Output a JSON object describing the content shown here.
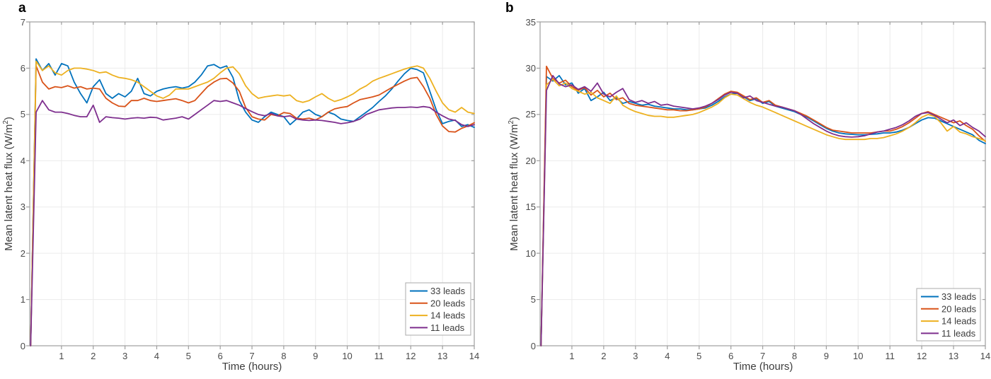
{
  "figure": {
    "panels": [
      {
        "label": "a",
        "xlabel": "Time (hours)",
        "ylabel_main": "Mean latent heat flux (W/m",
        "ylabel_sup": "2",
        "ylabel_end": ")"
      },
      {
        "label": "b",
        "xlabel": "Time (hours)",
        "ylabel_main": "Mean latent heat flux (W/m",
        "ylabel_sup": "2",
        "ylabel_end": ")"
      }
    ]
  },
  "chart_data": [
    {
      "type": "line",
      "panel": "a",
      "title": "",
      "xlabel": "Time (hours)",
      "ylabel": "Mean latent heat flux (W/m^2)",
      "xlim": [
        0,
        14
      ],
      "ylim": [
        0,
        7
      ],
      "xticks": [
        1,
        2,
        3,
        4,
        5,
        6,
        7,
        8,
        9,
        10,
        11,
        12,
        13,
        14
      ],
      "yticks": [
        0,
        1,
        2,
        3,
        4,
        5,
        6,
        7
      ],
      "grid": true,
      "legend_position": "lower right inset",
      "x": [
        0.03,
        0.2,
        0.4,
        0.6,
        0.8,
        1,
        1.2,
        1.4,
        1.6,
        1.8,
        2,
        2.2,
        2.4,
        2.6,
        2.8,
        3,
        3.2,
        3.4,
        3.6,
        3.8,
        4,
        4.2,
        4.4,
        4.6,
        4.8,
        5,
        5.2,
        5.4,
        5.6,
        5.8,
        6,
        6.2,
        6.4,
        6.6,
        6.8,
        7,
        7.2,
        7.4,
        7.6,
        7.8,
        8,
        8.2,
        8.4,
        8.6,
        8.8,
        9,
        9.2,
        9.4,
        9.6,
        9.8,
        10,
        10.2,
        10.4,
        10.6,
        10.8,
        11,
        11.2,
        11.4,
        11.6,
        11.8,
        12,
        12.2,
        12.4,
        12.6,
        12.8,
        13,
        13.2,
        13.4,
        13.6,
        13.8,
        14
      ],
      "series": [
        {
          "name": "33 leads",
          "color": "#0072BD",
          "values": [
            0,
            6.2,
            5.95,
            6.1,
            5.85,
            6.1,
            6.05,
            5.7,
            5.45,
            5.25,
            5.6,
            5.75,
            5.45,
            5.35,
            5.45,
            5.38,
            5.5,
            5.78,
            5.45,
            5.4,
            5.5,
            5.55,
            5.58,
            5.6,
            5.57,
            5.6,
            5.7,
            5.85,
            6.05,
            6.08,
            6.0,
            6.05,
            5.8,
            5.3,
            5.05,
            4.88,
            4.83,
            4.95,
            5.05,
            5.0,
            4.95,
            4.78,
            4.9,
            5.05,
            5.1,
            5.0,
            4.95,
            5.05,
            5.0,
            4.9,
            4.87,
            4.85,
            4.95,
            5.05,
            5.15,
            5.28,
            5.4,
            5.55,
            5.72,
            5.88,
            6.0,
            5.97,
            5.9,
            5.5,
            5.1,
            4.8,
            4.85,
            4.88,
            4.74,
            4.78,
            4.72
          ]
        },
        {
          "name": "20 leads",
          "color": "#D95319",
          "values": [
            0,
            6.05,
            5.7,
            5.55,
            5.6,
            5.58,
            5.62,
            5.57,
            5.6,
            5.55,
            5.57,
            5.55,
            5.35,
            5.25,
            5.18,
            5.17,
            5.3,
            5.3,
            5.35,
            5.3,
            5.28,
            5.3,
            5.32,
            5.34,
            5.3,
            5.25,
            5.3,
            5.45,
            5.6,
            5.7,
            5.77,
            5.78,
            5.68,
            5.5,
            5.15,
            4.95,
            4.9,
            4.88,
            5.0,
            4.97,
            5.04,
            5.02,
            4.92,
            4.9,
            4.92,
            4.88,
            4.95,
            5.05,
            5.12,
            5.15,
            5.17,
            5.25,
            5.32,
            5.35,
            5.38,
            5.42,
            5.5,
            5.58,
            5.65,
            5.72,
            5.78,
            5.8,
            5.6,
            5.35,
            5.0,
            4.75,
            4.63,
            4.62,
            4.7,
            4.75,
            4.82
          ]
        },
        {
          "name": "14 leads",
          "color": "#EDB120",
          "values": [
            0,
            6.15,
            5.95,
            6.05,
            5.9,
            5.85,
            5.95,
            6.0,
            6.0,
            5.98,
            5.95,
            5.9,
            5.92,
            5.85,
            5.8,
            5.78,
            5.75,
            5.7,
            5.6,
            5.5,
            5.4,
            5.35,
            5.42,
            5.55,
            5.55,
            5.55,
            5.6,
            5.65,
            5.7,
            5.78,
            5.9,
            6.0,
            6.03,
            5.88,
            5.62,
            5.45,
            5.35,
            5.38,
            5.4,
            5.42,
            5.4,
            5.42,
            5.3,
            5.26,
            5.3,
            5.38,
            5.45,
            5.35,
            5.28,
            5.32,
            5.38,
            5.45,
            5.55,
            5.62,
            5.72,
            5.78,
            5.83,
            5.88,
            5.93,
            5.98,
            6.02,
            6.05,
            6.0,
            5.78,
            5.5,
            5.25,
            5.1,
            5.05,
            5.15,
            5.05,
            5.02
          ]
        },
        {
          "name": "11 leads",
          "color": "#7E2F8E",
          "values": [
            0,
            5.05,
            5.3,
            5.1,
            5.05,
            5.05,
            5.02,
            4.98,
            4.95,
            4.95,
            5.2,
            4.83,
            4.95,
            4.93,
            4.92,
            4.9,
            4.92,
            4.93,
            4.92,
            4.94,
            4.93,
            4.88,
            4.9,
            4.92,
            4.95,
            4.9,
            5.0,
            5.1,
            5.2,
            5.3,
            5.28,
            5.3,
            5.25,
            5.2,
            5.13,
            5.06,
            5.0,
            4.97,
            5.02,
            4.97,
            4.95,
            4.97,
            4.9,
            4.88,
            4.87,
            4.88,
            4.87,
            4.85,
            4.83,
            4.8,
            4.82,
            4.85,
            4.9,
            5.0,
            5.05,
            5.1,
            5.12,
            5.14,
            5.15,
            5.15,
            5.16,
            5.15,
            5.17,
            5.15,
            5.05,
            4.97,
            4.9,
            4.87,
            4.78,
            4.74,
            4.78
          ]
        }
      ]
    },
    {
      "type": "line",
      "panel": "b",
      "title": "",
      "xlabel": "Time (hours)",
      "ylabel": "Mean latent heat flux (W/m^2)",
      "xlim": [
        0,
        14
      ],
      "ylim": [
        0,
        35
      ],
      "xticks": [
        1,
        2,
        3,
        4,
        5,
        6,
        7,
        8,
        9,
        10,
        11,
        12,
        13,
        14
      ],
      "yticks": [
        0,
        5,
        10,
        15,
        20,
        25,
        30,
        35
      ],
      "grid": true,
      "legend_position": "lower right inset",
      "x": [
        0.03,
        0.2,
        0.4,
        0.6,
        0.8,
        1,
        1.2,
        1.4,
        1.6,
        1.8,
        2,
        2.2,
        2.4,
        2.6,
        2.8,
        3,
        3.2,
        3.4,
        3.6,
        3.8,
        4,
        4.2,
        4.4,
        4.6,
        4.8,
        5,
        5.2,
        5.4,
        5.6,
        5.8,
        6,
        6.2,
        6.4,
        6.6,
        6.8,
        7,
        7.2,
        7.4,
        7.6,
        7.8,
        8,
        8.2,
        8.4,
        8.6,
        8.8,
        9,
        9.2,
        9.4,
        9.6,
        9.8,
        10,
        10.2,
        10.4,
        10.6,
        10.8,
        11,
        11.2,
        11.4,
        11.6,
        11.8,
        12,
        12.2,
        12.4,
        12.6,
        12.8,
        13,
        13.2,
        13.4,
        13.6,
        13.8,
        14
      ],
      "series": [
        {
          "name": "33 leads",
          "color": "#0072BD",
          "values": [
            0,
            29.1,
            28.6,
            29.2,
            28.2,
            28.4,
            27.3,
            27.8,
            26.5,
            26.9,
            27.4,
            26.5,
            26.8,
            26.2,
            26.4,
            26.2,
            26.0,
            26.1,
            25.9,
            25.8,
            25.7,
            25.6,
            25.6,
            25.5,
            25.5,
            25.6,
            25.7,
            26.0,
            26.4,
            26.9,
            27.2,
            27.3,
            26.9,
            26.5,
            26.7,
            26.2,
            26.4,
            25.9,
            25.7,
            25.5,
            25.3,
            25.0,
            24.7,
            24.3,
            23.9,
            23.5,
            23.2,
            23.0,
            22.9,
            22.85,
            22.8,
            22.8,
            22.85,
            22.9,
            23.0,
            23.0,
            23.1,
            23.3,
            23.6,
            24.0,
            24.4,
            24.65,
            24.6,
            24.3,
            24.0,
            23.7,
            23.4,
            23.1,
            22.8,
            22.2,
            21.85
          ]
        },
        {
          "name": "20 leads",
          "color": "#D95319",
          "values": [
            0,
            30.2,
            28.9,
            28.4,
            28.7,
            28.0,
            27.6,
            27.9,
            27.1,
            27.6,
            26.9,
            27.3,
            26.6,
            26.8,
            26.2,
            26.0,
            25.9,
            25.8,
            25.7,
            25.6,
            25.5,
            25.5,
            25.4,
            25.4,
            25.5,
            25.6,
            25.8,
            26.2,
            26.7,
            27.2,
            27.5,
            27.4,
            27.0,
            26.6,
            26.8,
            26.3,
            26.5,
            26.0,
            25.8,
            25.6,
            25.4,
            25.1,
            24.8,
            24.4,
            24.0,
            23.6,
            23.3,
            23.2,
            23.1,
            23.0,
            23.0,
            23.0,
            23.0,
            23.1,
            23.2,
            23.2,
            23.4,
            23.7,
            24.1,
            24.6,
            25.1,
            25.3,
            25.0,
            24.7,
            24.4,
            24.1,
            24.3,
            23.8,
            23.4,
            22.7,
            22.1
          ]
        },
        {
          "name": "14 leads",
          "color": "#EDB120",
          "values": [
            0,
            28.2,
            28.8,
            28.1,
            28.4,
            27.8,
            27.5,
            27.2,
            27.4,
            26.8,
            26.5,
            26.2,
            27.0,
            26.0,
            25.6,
            25.3,
            25.1,
            24.9,
            24.8,
            24.8,
            24.7,
            24.7,
            24.8,
            24.9,
            25.0,
            25.2,
            25.5,
            25.8,
            26.2,
            26.8,
            27.2,
            27.1,
            26.7,
            26.3,
            26.0,
            25.8,
            25.5,
            25.2,
            24.9,
            24.6,
            24.3,
            24.0,
            23.7,
            23.4,
            23.1,
            22.8,
            22.6,
            22.4,
            22.3,
            22.3,
            22.3,
            22.3,
            22.4,
            22.4,
            22.5,
            22.7,
            22.9,
            23.2,
            23.6,
            24.1,
            24.7,
            25.0,
            24.8,
            24.1,
            23.2,
            23.7,
            23.1,
            22.9,
            22.6,
            22.4,
            22.15
          ]
        },
        {
          "name": "11 leads",
          "color": "#7E2F8E",
          "values": [
            0,
            27.6,
            29.2,
            28.3,
            28.0,
            28.2,
            27.7,
            28.0,
            27.5,
            28.4,
            27.2,
            26.9,
            27.4,
            27.8,
            26.6,
            26.3,
            26.5,
            26.2,
            26.4,
            26.0,
            26.1,
            25.9,
            25.8,
            25.7,
            25.6,
            25.7,
            25.9,
            26.2,
            26.6,
            27.1,
            27.4,
            27.3,
            26.8,
            27.0,
            26.5,
            26.3,
            26.1,
            25.9,
            25.8,
            25.6,
            25.4,
            25.0,
            24.5,
            24.0,
            23.6,
            23.2,
            22.9,
            22.7,
            22.6,
            22.55,
            22.6,
            22.7,
            22.9,
            23.1,
            23.2,
            23.4,
            23.6,
            23.9,
            24.3,
            24.8,
            25.1,
            25.2,
            24.9,
            24.5,
            24.1,
            24.4,
            23.8,
            24.1,
            23.6,
            23.2,
            22.6
          ]
        }
      ]
    }
  ]
}
